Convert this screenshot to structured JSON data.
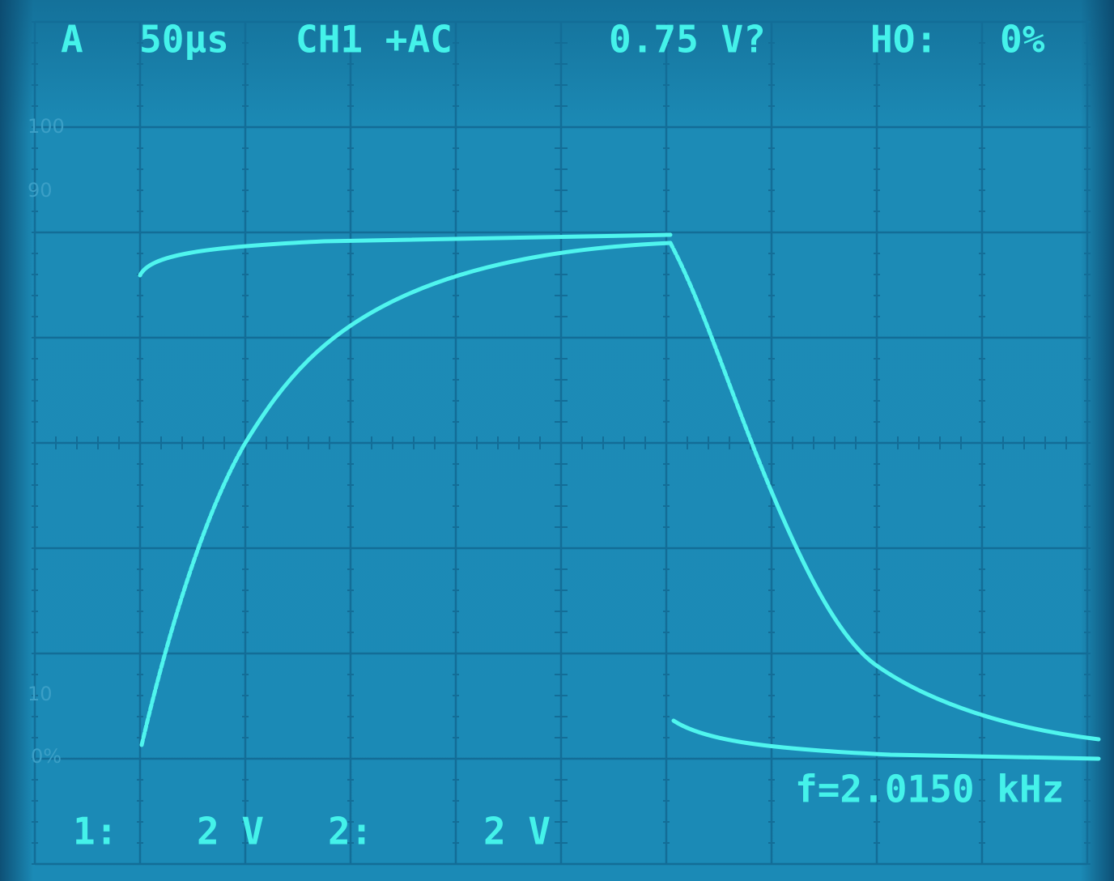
{
  "header": {
    "trigger": "A",
    "timebase": "50μs",
    "channel": "CH1 +AC",
    "level": "0.75 V?",
    "holdoff_label": "HO:",
    "holdoff": "0%"
  },
  "graticule_labels": [
    "100",
    "90",
    "10",
    "0%"
  ],
  "footer": {
    "ch1_label": "1:",
    "ch1_scale": "2 V",
    "ch2_label": "2:",
    "ch2_scale": "2 V"
  },
  "frequency": "f=2.0150 kHz"
}
